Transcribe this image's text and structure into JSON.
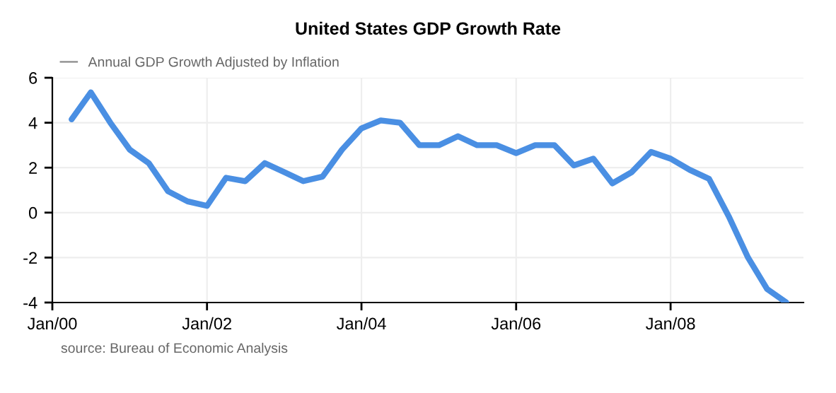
{
  "chart_data": {
    "type": "line",
    "title": "United States GDP Growth Rate",
    "x": [
      "2000-04",
      "2000-07",
      "2000-10",
      "2001-01",
      "2001-04",
      "2001-07",
      "2001-10",
      "2002-01",
      "2002-04",
      "2002-07",
      "2002-10",
      "2003-01",
      "2003-04",
      "2003-07",
      "2003-10",
      "2004-01",
      "2004-04",
      "2004-07",
      "2004-10",
      "2005-01",
      "2005-04",
      "2005-07",
      "2005-10",
      "2006-01",
      "2006-04",
      "2006-07",
      "2006-10",
      "2007-01",
      "2007-04",
      "2007-07",
      "2007-10",
      "2008-01",
      "2008-04",
      "2008-07",
      "2008-10",
      "2009-01",
      "2009-04",
      "2009-07"
    ],
    "series": [
      {
        "name": "Annual GDP Growth Adjusted by Inflation",
        "color": "#4a8fe3",
        "values": [
          4.15,
          5.35,
          4.0,
          2.8,
          2.2,
          0.95,
          0.5,
          0.3,
          1.55,
          1.4,
          2.2,
          1.8,
          1.4,
          1.6,
          2.8,
          3.75,
          4.1,
          4.0,
          3.0,
          3.0,
          3.4,
          3.0,
          3.0,
          2.65,
          3.0,
          3.0,
          2.1,
          2.4,
          1.3,
          1.8,
          2.7,
          2.4,
          1.9,
          1.5,
          -0.15,
          -2.0,
          -3.4,
          -4.0
        ]
      }
    ],
    "xlim": [
      "2000-01-01",
      "2009-09-20"
    ],
    "xticks": [
      {
        "value": "2000-01",
        "label": "Jan/00"
      },
      {
        "value": "2002-01",
        "label": "Jan/02"
      },
      {
        "value": "2004-01",
        "label": "Jan/04"
      },
      {
        "value": "2006-01",
        "label": "Jan/06"
      },
      {
        "value": "2008-01",
        "label": "Jan/08"
      }
    ],
    "ylim": [
      -4,
      6
    ],
    "yticks": [
      -4,
      -2,
      0,
      2,
      4,
      6
    ],
    "grid": true,
    "legend": "top left",
    "marker": "none",
    "line_style": "solid",
    "annotations": [
      "source: Bureau of Economic Analysis"
    ]
  }
}
